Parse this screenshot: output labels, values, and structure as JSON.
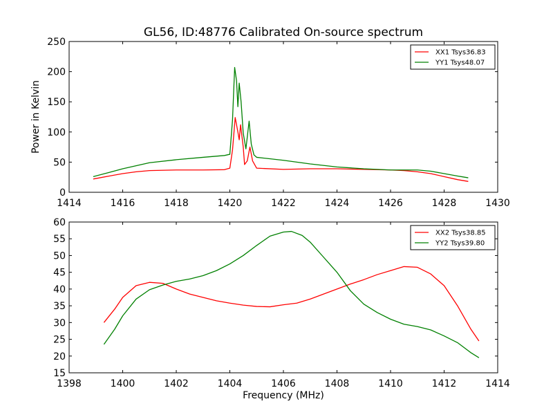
{
  "chart_data": [
    {
      "type": "line",
      "title": "GL56, ID:48776 Calibrated On-source spectrum",
      "xlabel": "",
      "ylabel": "Power in Kelvin",
      "xlim": [
        1414,
        1430
      ],
      "ylim": [
        0,
        250
      ],
      "xticks": [
        "1414",
        "1416",
        "1418",
        "1420",
        "1422",
        "1424",
        "1426",
        "1428",
        "1430"
      ],
      "yticks": [
        "0",
        "50",
        "100",
        "150",
        "200",
        "250"
      ],
      "grid": false,
      "legend_position": "top-right",
      "series": [
        {
          "name": "XX1 Tsys36.83",
          "color": "#ff0000",
          "points": [
            [
              1414.9,
              22
            ],
            [
              1415.5,
              27
            ],
            [
              1416.0,
              31
            ],
            [
              1416.5,
              34
            ],
            [
              1417.0,
              36
            ],
            [
              1418.0,
              37
            ],
            [
              1419.0,
              37
            ],
            [
              1419.8,
              37.5
            ],
            [
              1420.0,
              40
            ],
            [
              1420.1,
              70
            ],
            [
              1420.2,
              124
            ],
            [
              1420.3,
              100
            ],
            [
              1420.35,
              87
            ],
            [
              1420.4,
              112
            ],
            [
              1420.5,
              75
            ],
            [
              1420.55,
              46
            ],
            [
              1420.65,
              52
            ],
            [
              1420.75,
              75
            ],
            [
              1420.85,
              52
            ],
            [
              1421.0,
              40
            ],
            [
              1422.0,
              38
            ],
            [
              1423.0,
              39
            ],
            [
              1424.0,
              39
            ],
            [
              1425.0,
              38
            ],
            [
              1426.0,
              37
            ],
            [
              1426.5,
              36
            ],
            [
              1427.0,
              34
            ],
            [
              1427.5,
              31
            ],
            [
              1428.0,
              26
            ],
            [
              1428.5,
              21
            ],
            [
              1428.9,
              18
            ]
          ]
        },
        {
          "name": "YY1 Tsys48.07",
          "color": "#008000",
          "points": [
            [
              1414.9,
              26
            ],
            [
              1415.5,
              33
            ],
            [
              1416.0,
              39
            ],
            [
              1416.5,
              44
            ],
            [
              1417.0,
              49
            ],
            [
              1418.0,
              54
            ],
            [
              1419.0,
              58
            ],
            [
              1419.8,
              61
            ],
            [
              1420.0,
              63
            ],
            [
              1420.1,
              120
            ],
            [
              1420.18,
              207
            ],
            [
              1420.25,
              185
            ],
            [
              1420.3,
              142
            ],
            [
              1420.35,
              181
            ],
            [
              1420.42,
              150
            ],
            [
              1420.5,
              98
            ],
            [
              1420.6,
              72
            ],
            [
              1420.72,
              118
            ],
            [
              1420.8,
              80
            ],
            [
              1420.9,
              62
            ],
            [
              1421.0,
              58
            ],
            [
              1422.0,
              53
            ],
            [
              1423.0,
              47
            ],
            [
              1424.0,
              42
            ],
            [
              1425.0,
              39
            ],
            [
              1426.0,
              37
            ],
            [
              1427.0,
              37
            ],
            [
              1427.5,
              35
            ],
            [
              1428.0,
              31
            ],
            [
              1428.5,
              27
            ],
            [
              1428.9,
              24
            ]
          ]
        }
      ]
    },
    {
      "type": "line",
      "title": "",
      "xlabel": "Frequency (MHz)",
      "ylabel": "",
      "xlim": [
        1398,
        1414
      ],
      "ylim": [
        15,
        60
      ],
      "xticks": [
        "1398",
        "1400",
        "1402",
        "1404",
        "1406",
        "1408",
        "1410",
        "1412",
        "1414"
      ],
      "yticks": [
        "15",
        "20",
        "25",
        "30",
        "35",
        "40",
        "45",
        "50",
        "55",
        "60"
      ],
      "grid": false,
      "legend_position": "top-right",
      "series": [
        {
          "name": "XX2 Tsys38.85",
          "color": "#ff0000",
          "points": [
            [
              1399.3,
              30
            ],
            [
              1399.7,
              34
            ],
            [
              1400.0,
              37.5
            ],
            [
              1400.5,
              41
            ],
            [
              1401.0,
              42
            ],
            [
              1401.5,
              41.7
            ],
            [
              1402.0,
              40
            ],
            [
              1402.5,
              38.5
            ],
            [
              1403.0,
              37.5
            ],
            [
              1403.5,
              36.5
            ],
            [
              1404.0,
              35.8
            ],
            [
              1404.5,
              35.2
            ],
            [
              1405.0,
              34.8
            ],
            [
              1405.5,
              34.7
            ],
            [
              1406.0,
              35.3
            ],
            [
              1406.5,
              35.8
            ],
            [
              1407.0,
              37
            ],
            [
              1407.5,
              38.5
            ],
            [
              1408.0,
              40
            ],
            [
              1408.5,
              41.5
            ],
            [
              1409.0,
              42.8
            ],
            [
              1409.5,
              44.3
            ],
            [
              1410.0,
              45.5
            ],
            [
              1410.5,
              46.7
            ],
            [
              1411.0,
              46.5
            ],
            [
              1411.5,
              44.5
            ],
            [
              1412.0,
              41
            ],
            [
              1412.5,
              35
            ],
            [
              1413.0,
              28
            ],
            [
              1413.3,
              24.5
            ]
          ]
        },
        {
          "name": "YY2 Tsys39.80",
          "color": "#008000",
          "points": [
            [
              1399.3,
              23.5
            ],
            [
              1399.7,
              28
            ],
            [
              1400.0,
              32
            ],
            [
              1400.5,
              37
            ],
            [
              1401.0,
              39.8
            ],
            [
              1401.5,
              41.2
            ],
            [
              1402.0,
              42.3
            ],
            [
              1402.5,
              43
            ],
            [
              1403.0,
              44
            ],
            [
              1403.5,
              45.5
            ],
            [
              1404.0,
              47.5
            ],
            [
              1404.5,
              50
            ],
            [
              1405.0,
              53
            ],
            [
              1405.5,
              55.8
            ],
            [
              1406.0,
              57
            ],
            [
              1406.3,
              57.2
            ],
            [
              1406.7,
              56
            ],
            [
              1407.0,
              54
            ],
            [
              1407.5,
              49.5
            ],
            [
              1408.0,
              45
            ],
            [
              1408.5,
              39.5
            ],
            [
              1409.0,
              35.5
            ],
            [
              1409.5,
              33
            ],
            [
              1410.0,
              31
            ],
            [
              1410.5,
              29.5
            ],
            [
              1411.0,
              28.8
            ],
            [
              1411.5,
              27.8
            ],
            [
              1412.0,
              26
            ],
            [
              1412.5,
              24
            ],
            [
              1413.0,
              21
            ],
            [
              1413.3,
              19.5
            ]
          ]
        }
      ]
    }
  ]
}
